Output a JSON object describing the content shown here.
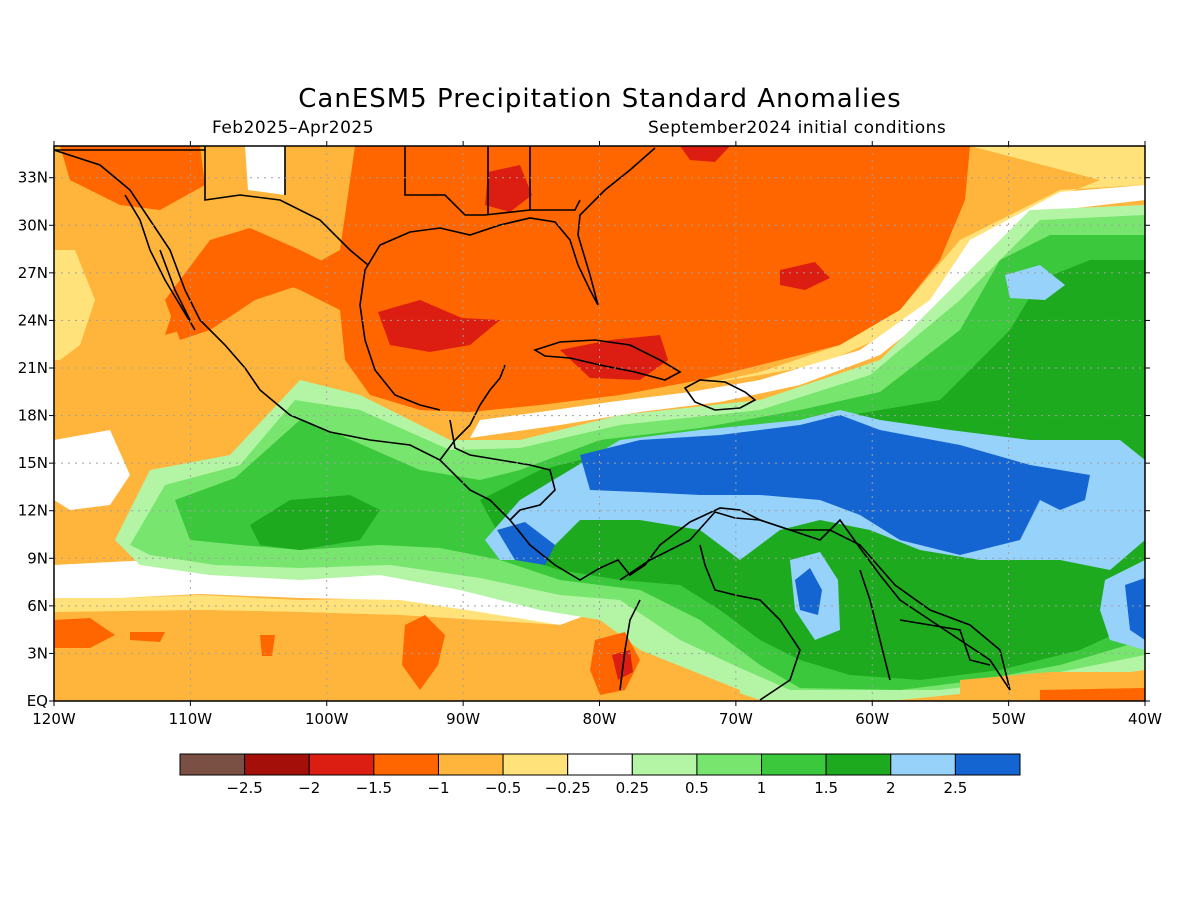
{
  "title": "CanESM5 Precipitation Standard Anomalies",
  "period": "Feb2025–Apr2025",
  "init": "September2024 initial conditions",
  "lat_labels": [
    "33N",
    "30N",
    "27N",
    "24N",
    "21N",
    "18N",
    "15N",
    "12N",
    "9N",
    "6N",
    "3N",
    "EQ"
  ],
  "lat_values": [
    33,
    30,
    27,
    24,
    21,
    18,
    15,
    12,
    9,
    6,
    3,
    0
  ],
  "lon_labels": [
    "120W",
    "110W",
    "100W",
    "90W",
    "80W",
    "70W",
    "60W",
    "50W",
    "40W"
  ],
  "lon_values": [
    -120,
    -110,
    -100,
    -90,
    -80,
    -70,
    -60,
    -50,
    -40
  ],
  "legend": {
    "colors": [
      "#7a5044",
      "#a50f0a",
      "#dc1e12",
      "#ff6600",
      "#ffb43c",
      "#ffe37a",
      "#ffffff",
      "#b4f5a5",
      "#78e66e",
      "#3cc83c",
      "#1eaa1e",
      "#96d2fa",
      "#1464d2"
    ],
    "labels": [
      "−2.5",
      "−2",
      "−1.5",
      "−1",
      "−0.5",
      "−0.25",
      "0.25",
      "0.5",
      "1",
      "1.5",
      "2",
      "2.5"
    ]
  }
}
